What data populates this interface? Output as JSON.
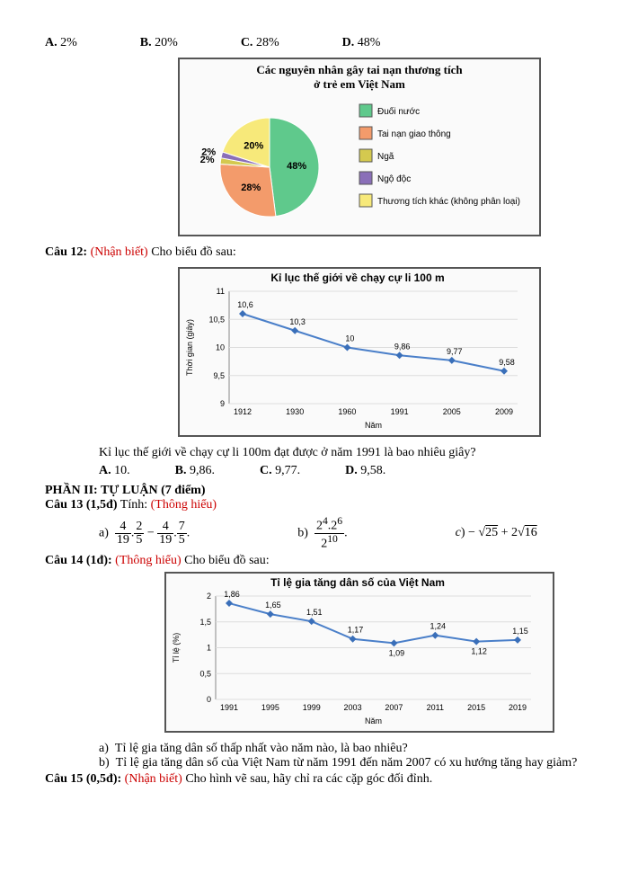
{
  "q11_options": {
    "a": "A.  2%",
    "b": "B.  20%",
    "c": "C.  28%",
    "d": "D.  48%"
  },
  "pie": {
    "title1": "Các nguyên nhân gây tai nạn thương tích",
    "title2": "ở trẻ em Việt Nam",
    "legend": [
      "Đuối nước",
      "Tai nạn giao thông",
      "Ngã",
      "Ngộ độc",
      "Thương tích khác (không phân loại)"
    ],
    "slices": [
      {
        "label": "48%",
        "value": 48,
        "color": "#5fc98c"
      },
      {
        "label": "28%",
        "value": 28,
        "color": "#f39b6b"
      },
      {
        "label": "2%",
        "value": 2,
        "color": "#d4c94f"
      },
      {
        "label": "2%",
        "value": 2,
        "color": "#8a6fb8"
      },
      {
        "label": "20%",
        "value": 20,
        "color": "#f7e97a"
      }
    ],
    "legend_colors": [
      "#5fc98c",
      "#f39b6b",
      "#d4c94f",
      "#8a6fb8",
      "#f7e97a"
    ]
  },
  "q12": {
    "label": "Câu 12:",
    "tag": "(Nhận biết)",
    "text": "Cho biểu đồ sau:",
    "chart_title": "Kỉ lục thế giới về chạy cự li 100 m",
    "ylabel": "Thời gian (giây)",
    "xlabel": "Năm",
    "yticks": [
      "9",
      "9,5",
      "10",
      "10,5",
      "11"
    ],
    "xticks": [
      "1912",
      "1930",
      "1960",
      "1991",
      "2005",
      "2009"
    ],
    "values": [
      10.6,
      10.3,
      10,
      9.86,
      9.77,
      9.58
    ],
    "value_labels": [
      "10,6",
      "10,3",
      "10",
      "9,86",
      "9,77",
      "9,58"
    ],
    "line_color": "#4a7fc9",
    "marker_color": "#3a6fb9",
    "question": "Kỉ lục thế giới về chạy cự li 100m đạt được ở năm 1991 là bao nhiêu giây?",
    "options": {
      "a": "A. 10.",
      "b": "B. 9,86.",
      "c": "C. 9,77.",
      "d": "D. 9,58."
    }
  },
  "part2": "PHẦN II: TỰ LUẬN (7 điểm)",
  "q13": {
    "label": "Câu 13 (1,5đ)",
    "text": "Tính:",
    "tag": "(Thông hiểu)"
  },
  "q14": {
    "label": "Câu 14 (1đ):",
    "tag": "(Thông hiểu)",
    "text": "Cho biểu đồ sau:",
    "chart_title": "Tỉ lệ gia tăng dân số của Việt Nam",
    "ylabel": "Tỉ lệ (%)",
    "xlabel": "Năm",
    "yticks": [
      "0",
      "0,5",
      "1",
      "1,5",
      "2"
    ],
    "xticks": [
      "1991",
      "1995",
      "1999",
      "2003",
      "2007",
      "2011",
      "2015",
      "2019"
    ],
    "values": [
      1.86,
      1.65,
      1.51,
      1.17,
      1.09,
      1.24,
      1.12,
      1.15
    ],
    "value_labels": [
      "1,86",
      "1,65",
      "1,51",
      "1,17",
      "1,09",
      "1,24",
      "1,12",
      "1,15"
    ],
    "line_color": "#4a7fc9",
    "marker_color": "#3a6fb9",
    "qa": "Tỉ lệ gia tăng dân số thấp nhất vào năm nào, là bao nhiêu?",
    "qb": "Tỉ lệ gia tăng dân số của Việt Nam từ năm 1991 đến năm 2007 có xu hướng tăng hay giảm?"
  },
  "q15": {
    "label": "Câu 15 (0,5đ):",
    "tag": "(Nhận biết)",
    "text": "Cho hình vẽ sau, hãy chỉ ra các cặp góc đối đỉnh."
  }
}
